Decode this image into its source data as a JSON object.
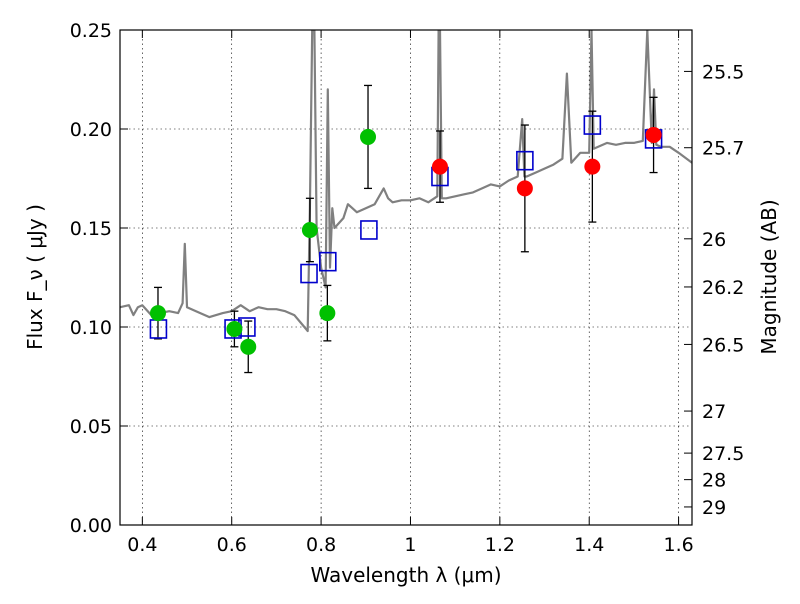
{
  "chart_data": {
    "type": "scatter",
    "xlabel": "Wavelength  λ (μm)",
    "ylabel": "Flux  F_ν  ( μJy )",
    "y2label": "Magnitude (AB)",
    "xlim": [
      0.35,
      1.63
    ],
    "ylim": [
      0.0,
      0.25
    ],
    "x_ticks": [
      0.4,
      0.6,
      0.8,
      1.0,
      1.2,
      1.4,
      1.6
    ],
    "x_tick_labels": [
      "0.4",
      "0.6",
      "0.8",
      "1",
      "1.2",
      "1.4",
      "1.6"
    ],
    "y_ticks": [
      0.0,
      0.05,
      0.1,
      0.15,
      0.2,
      0.25
    ],
    "y_tick_labels": [
      "0.00",
      "0.05",
      "0.10",
      "0.15",
      "0.20",
      "0.25"
    ],
    "mag_ticks": [
      25.5,
      25.7,
      26,
      26.2,
      26.5,
      27,
      27.5,
      28,
      29
    ],
    "mag_tick_labels": [
      "25.5",
      "25.7",
      "26",
      "26.2",
      "26.5",
      "27",
      "27.5",
      "28",
      "29"
    ],
    "grid": true,
    "series": [
      {
        "marker": "circle",
        "color": "#00c000",
        "points": [
          {
            "x": 0.435,
            "y": 0.107,
            "yerr": 0.013
          },
          {
            "x": 0.606,
            "y": 0.099,
            "yerr": 0.009
          },
          {
            "x": 0.637,
            "y": 0.09,
            "yerr": 0.013
          },
          {
            "x": 0.775,
            "y": 0.149,
            "yerr": 0.016
          },
          {
            "x": 0.814,
            "y": 0.107,
            "yerr": 0.014
          },
          {
            "x": 0.905,
            "y": 0.196,
            "yerr": 0.026
          }
        ]
      },
      {
        "marker": "circle",
        "color": "#ff0000",
        "points": [
          {
            "x": 1.066,
            "y": 0.181,
            "yerr": 0.018
          },
          {
            "x": 1.256,
            "y": 0.17,
            "yerr": 0.032
          },
          {
            "x": 1.407,
            "y": 0.181,
            "yerr": 0.028
          },
          {
            "x": 1.544,
            "y": 0.197,
            "yerr": 0.019
          }
        ]
      },
      {
        "marker": "square-open",
        "color": "#0000cc",
        "points": [
          {
            "x": 0.436,
            "y": 0.099
          },
          {
            "x": 0.603,
            "y": 0.099
          },
          {
            "x": 0.634,
            "y": 0.1
          },
          {
            "x": 0.773,
            "y": 0.127
          },
          {
            "x": 0.815,
            "y": 0.133
          },
          {
            "x": 0.907,
            "y": 0.149
          },
          {
            "x": 1.066,
            "y": 0.176
          },
          {
            "x": 1.256,
            "y": 0.184
          },
          {
            "x": 1.407,
            "y": 0.202
          },
          {
            "x": 1.544,
            "y": 0.195
          }
        ]
      }
    ],
    "model_spectrum": {
      "color": "#808080",
      "x": [
        0.35,
        0.37,
        0.38,
        0.39,
        0.4,
        0.42,
        0.44,
        0.46,
        0.48,
        0.49,
        0.495,
        0.5,
        0.52,
        0.55,
        0.58,
        0.6,
        0.62,
        0.64,
        0.66,
        0.68,
        0.7,
        0.72,
        0.74,
        0.755,
        0.77,
        0.775,
        0.78,
        0.785,
        0.79,
        0.8,
        0.81,
        0.815,
        0.82,
        0.825,
        0.83,
        0.85,
        0.86,
        0.87,
        0.88,
        0.9,
        0.92,
        0.94,
        0.95,
        0.96,
        0.98,
        1.0,
        1.02,
        1.04,
        1.06,
        1.063,
        1.066,
        1.07,
        1.08,
        1.1,
        1.12,
        1.14,
        1.16,
        1.18,
        1.2,
        1.22,
        1.24,
        1.25,
        1.255,
        1.26,
        1.28,
        1.3,
        1.32,
        1.34,
        1.35,
        1.36,
        1.38,
        1.4,
        1.405,
        1.41,
        1.42,
        1.44,
        1.46,
        1.48,
        1.5,
        1.52,
        1.53,
        1.54,
        1.545,
        1.55,
        1.56,
        1.58,
        1.6,
        1.63
      ],
      "y": [
        0.11,
        0.111,
        0.106,
        0.11,
        0.111,
        0.106,
        0.107,
        0.108,
        0.107,
        0.112,
        0.142,
        0.11,
        0.108,
        0.105,
        0.107,
        0.108,
        0.111,
        0.108,
        0.11,
        0.109,
        0.109,
        0.108,
        0.106,
        0.102,
        0.098,
        0.16,
        0.25,
        0.25,
        0.15,
        0.13,
        0.12,
        0.22,
        0.13,
        0.16,
        0.15,
        0.155,
        0.162,
        0.16,
        0.158,
        0.16,
        0.162,
        0.17,
        0.165,
        0.163,
        0.164,
        0.164,
        0.165,
        0.163,
        0.166,
        0.25,
        0.25,
        0.165,
        0.165,
        0.166,
        0.167,
        0.168,
        0.17,
        0.172,
        0.171,
        0.174,
        0.176,
        0.205,
        0.176,
        0.176,
        0.178,
        0.18,
        0.182,
        0.185,
        0.228,
        0.183,
        0.188,
        0.188,
        0.25,
        0.19,
        0.191,
        0.193,
        0.192,
        0.193,
        0.193,
        0.194,
        0.25,
        0.193,
        0.22,
        0.192,
        0.191,
        0.191,
        0.188,
        0.183
      ]
    }
  }
}
